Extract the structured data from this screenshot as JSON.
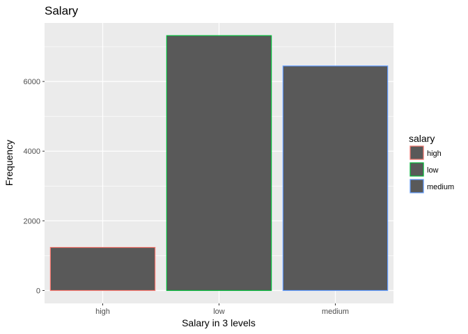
{
  "chart_data": {
    "type": "bar",
    "title": "Salary",
    "xlabel": "Salary in 3 levels",
    "ylabel": "Frequency",
    "categories": [
      "high",
      "low",
      "medium"
    ],
    "values": [
      1237,
      7316,
      6446
    ],
    "ylim": [
      -370,
      7680
    ],
    "yticks": [
      0,
      2000,
      4000,
      6000
    ],
    "yticks_labels": [
      "0",
      "2000",
      "4000",
      "6000"
    ],
    "grid": true,
    "legend": {
      "title": "salary",
      "placement": "right",
      "entries": [
        "high",
        "low",
        "medium"
      ]
    },
    "colors": {
      "bar_fill": "#595959",
      "outlines": [
        "#F8766D",
        "#00BA38",
        "#619CFF"
      ],
      "panel_bg": "#EBEBEB",
      "grid": "#FFFFFF"
    }
  }
}
